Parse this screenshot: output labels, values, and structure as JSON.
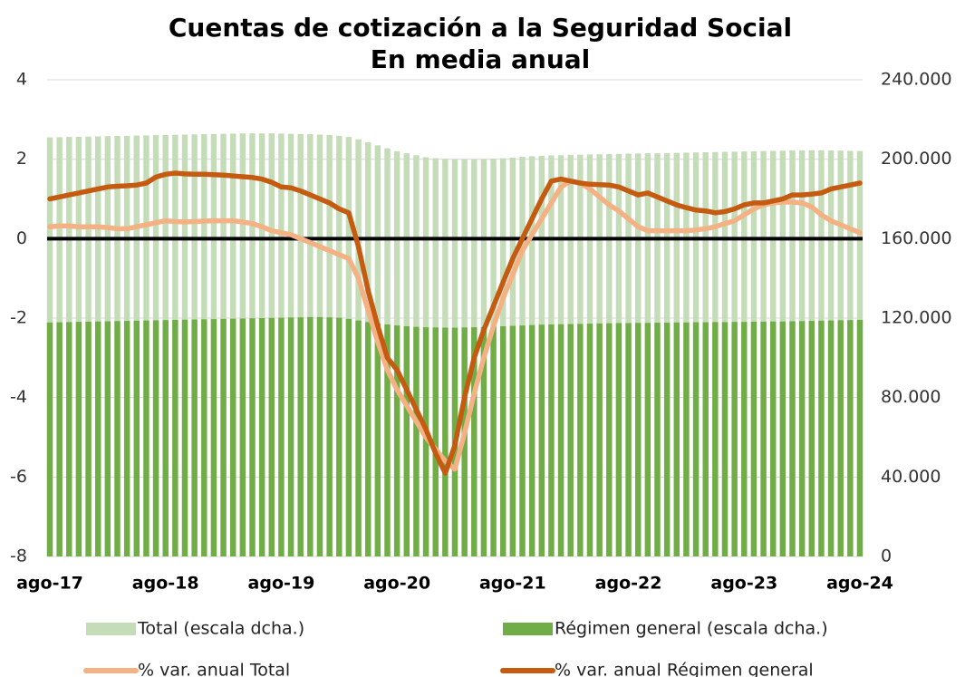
{
  "chart_data": {
    "type": "bar_line",
    "title": "Cuentas de cotización a la Seguridad Social",
    "subtitle": "En media anual",
    "categories": [
      "ago-17",
      null,
      null,
      null,
      null,
      null,
      null,
      null,
      null,
      null,
      null,
      null,
      "ago-18",
      null,
      null,
      null,
      null,
      null,
      null,
      null,
      null,
      null,
      null,
      null,
      "ago-19",
      null,
      null,
      null,
      null,
      null,
      null,
      null,
      null,
      null,
      null,
      null,
      "ago-20",
      null,
      null,
      null,
      null,
      null,
      null,
      null,
      null,
      null,
      null,
      null,
      "ago-21",
      null,
      null,
      null,
      null,
      null,
      null,
      null,
      null,
      null,
      null,
      null,
      "ago-22",
      null,
      null,
      null,
      null,
      null,
      null,
      null,
      null,
      null,
      null,
      null,
      "ago-23",
      null,
      null,
      null,
      null,
      null,
      null,
      null,
      null,
      null,
      null,
      null,
      "ago-24"
    ],
    "ylim": [
      -8,
      4
    ],
    "yticks": [
      -8,
      -6,
      -4,
      -2,
      0,
      2,
      4
    ],
    "y2lim": [
      0,
      240000
    ],
    "y2ticks": [
      0,
      {
        "value": 40000,
        "label": "40.000"
      },
      {
        "value": 80000,
        "label": "80.000"
      },
      {
        "value": 120000,
        "label": "120.000"
      },
      {
        "value": 160000,
        "label": "160.000"
      },
      {
        "value": 200000,
        "label": "200.000"
      },
      {
        "value": 240000,
        "label": "240.000"
      }
    ],
    "grid": true,
    "legend": "bottom",
    "series": [
      {
        "name": "Total (escala dcha.)",
        "kind": "bar",
        "axis": "y2",
        "color": "#c5dcb8",
        "values": [
          211000,
          211100,
          211200,
          211300,
          211400,
          211500,
          211600,
          211700,
          211800,
          211900,
          212000,
          212100,
          212200,
          212300,
          212400,
          212500,
          212600,
          212700,
          212800,
          212900,
          213000,
          213000,
          213000,
          213000,
          212900,
          212800,
          212700,
          212600,
          212400,
          212200,
          211800,
          211200,
          210000,
          208500,
          207000,
          205500,
          204000,
          203000,
          202000,
          201000,
          200500,
          200200,
          200000,
          200000,
          200000,
          200100,
          200300,
          200500,
          200800,
          201200,
          201500,
          201700,
          201900,
          202000,
          202200,
          202300,
          202400,
          202500,
          202600,
          202700,
          202800,
          202900,
          203000,
          203000,
          203100,
          203200,
          203300,
          203400,
          203500,
          203600,
          203700,
          203800,
          203900,
          204000,
          204100,
          204200,
          204300,
          204400,
          204400,
          204500,
          204500,
          204400,
          204300,
          204200,
          204100
        ]
      },
      {
        "name": "Régimen general (escala dcha.)",
        "kind": "bar",
        "axis": "y2",
        "color": "#70ad47",
        "values": [
          117800,
          117900,
          118000,
          118100,
          118200,
          118300,
          118400,
          118500,
          118600,
          118700,
          118800,
          118900,
          119000,
          119100,
          119200,
          119300,
          119400,
          119500,
          119600,
          119700,
          119800,
          119900,
          120000,
          120100,
          120200,
          120300,
          120400,
          120500,
          120500,
          120400,
          120200,
          119600,
          118800,
          118000,
          117300,
          116800,
          116300,
          115900,
          115600,
          115400,
          115300,
          115200,
          115200,
          115300,
          115400,
          115500,
          115700,
          115900,
          116100,
          116300,
          116500,
          116700,
          116800,
          116900,
          117000,
          117100,
          117200,
          117300,
          117400,
          117500,
          117500,
          117600,
          117600,
          117700,
          117700,
          117800,
          117800,
          117900,
          117900,
          118000,
          118000,
          118100,
          118100,
          118200,
          118200,
          118300,
          118300,
          118400,
          118500,
          118600,
          118700,
          118800,
          118900,
          119000,
          119100
        ]
      },
      {
        "name": "% var. anual Total",
        "kind": "line",
        "color": "#f4b183",
        "values": [
          0.3,
          0.32,
          0.32,
          0.3,
          0.3,
          0.3,
          0.28,
          0.25,
          0.25,
          0.3,
          0.35,
          0.4,
          0.45,
          0.43,
          0.42,
          0.43,
          0.44,
          0.45,
          0.45,
          0.45,
          0.42,
          0.38,
          0.3,
          0.2,
          0.15,
          0.1,
          0,
          -0.1,
          -0.2,
          -0.3,
          -0.4,
          -0.5,
          -1.0,
          -1.8,
          -2.6,
          -3.3,
          -3.8,
          -4.2,
          -4.6,
          -5.0,
          -5.3,
          -5.6,
          -5.8,
          -4.9,
          -3.9,
          -3.0,
          -2.2,
          -1.5,
          -0.9,
          -0.3,
          0.1,
          0.5,
          0.9,
          1.3,
          1.45,
          1.4,
          1.25,
          1.05,
          0.85,
          0.7,
          0.5,
          0.3,
          0.2,
          0.2,
          0.2,
          0.2,
          0.2,
          0.22,
          0.25,
          0.3,
          0.38,
          0.45,
          0.6,
          0.75,
          0.85,
          0.9,
          0.92,
          0.92,
          0.9,
          0.8,
          0.6,
          0.45,
          0.35,
          0.25,
          0.15
        ]
      },
      {
        "name": "% var. anual Régimen general",
        "kind": "line",
        "color": "#c55a11",
        "values": [
          1.0,
          1.05,
          1.1,
          1.15,
          1.2,
          1.25,
          1.3,
          1.32,
          1.33,
          1.35,
          1.4,
          1.55,
          1.62,
          1.65,
          1.63,
          1.62,
          1.62,
          1.61,
          1.6,
          1.58,
          1.56,
          1.54,
          1.5,
          1.42,
          1.3,
          1.28,
          1.2,
          1.1,
          1.0,
          0.9,
          0.75,
          0.65,
          -0.2,
          -1.3,
          -2.2,
          -3.0,
          -3.3,
          -3.8,
          -4.3,
          -4.8,
          -5.4,
          -5.9,
          -5.2,
          -4.0,
          -3.0,
          -2.3,
          -1.7,
          -1.1,
          -0.5,
          0.0,
          0.5,
          1.0,
          1.45,
          1.5,
          1.45,
          1.4,
          1.37,
          1.36,
          1.35,
          1.3,
          1.2,
          1.1,
          1.15,
          1.05,
          0.95,
          0.85,
          0.78,
          0.72,
          0.7,
          0.65,
          0.68,
          0.75,
          0.85,
          0.9,
          0.9,
          0.95,
          1.0,
          1.1,
          1.1,
          1.12,
          1.15,
          1.25,
          1.3,
          1.35,
          1.4
        ]
      }
    ]
  }
}
